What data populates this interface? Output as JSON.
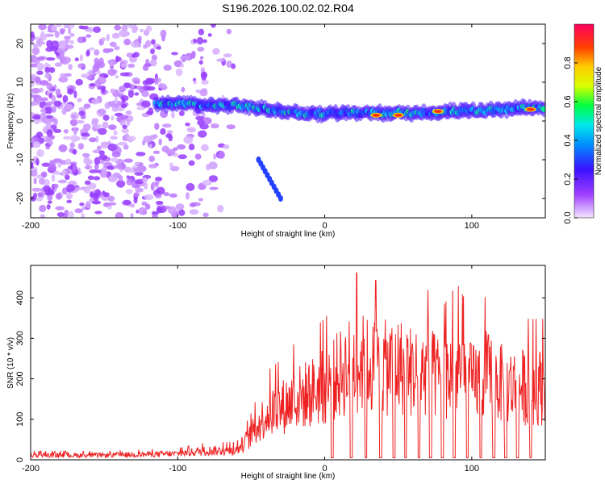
{
  "title": "S196.2026.100.02.02.R04",
  "chart_data": [
    {
      "type": "heatmap",
      "name": "spectrogram",
      "xlabel": "Height of straight line (km)",
      "ylabel": "Frequency (Hz)",
      "xlim": [
        -200,
        150
      ],
      "ylim": [
        -25,
        25
      ],
      "xticks": [
        -200,
        -100,
        0,
        100
      ],
      "yticks": [
        20,
        10,
        0,
        -10,
        -20
      ],
      "colorbar": {
        "label": "Normalized spectral amplitude",
        "range": [
          0.0,
          1.0
        ],
        "ticks": [
          0.0,
          0.2,
          0.4,
          0.6,
          0.8
        ],
        "colors": [
          "#f2e6ff",
          "#8a2be2",
          "#3a10ff",
          "#0080ff",
          "#00e0ff",
          "#00ff60",
          "#d8ff00",
          "#ffe000",
          "#ff6000",
          "#ff0060"
        ]
      },
      "features": [
        {
          "label": "noise region",
          "x_range": [
            -200,
            -60
          ],
          "y_range": [
            -25,
            25
          ],
          "level": 0.15
        },
        {
          "label": "carrier",
          "x_range": [
            -115,
            150
          ],
          "freq_hz": [
            4.5,
            4.0,
            2.0,
            2.0,
            2.5,
            3.5
          ],
          "x": [
            -115,
            -60,
            -20,
            40,
            100,
            150
          ],
          "peak_level": 0.95
        },
        {
          "label": "branch",
          "x_range": [
            -45,
            -30
          ],
          "freq_hz": [
            -10,
            -20
          ],
          "level": 0.3
        }
      ],
      "peaks": [
        {
          "x": 35,
          "y": 1.5,
          "level": 0.9
        },
        {
          "x": 50,
          "y": 1.5,
          "level": 0.9
        },
        {
          "x": 77,
          "y": 2.5,
          "level": 0.9
        },
        {
          "x": 140,
          "y": 3.0,
          "level": 0.9
        }
      ]
    },
    {
      "type": "line",
      "name": "snr",
      "xlabel": "Height of straight line (km)",
      "ylabel": "SNR (10 * v/v)",
      "xlim": [
        -200,
        150
      ],
      "ylim": [
        0,
        480
      ],
      "xticks": [
        -200,
        -100,
        0,
        100
      ],
      "yticks": [
        0,
        100,
        200,
        300,
        400
      ],
      "color": "#ee2222",
      "series": [
        {
          "name": "SNR envelope",
          "x": [
            -200,
            -150,
            -100,
            -80,
            -60,
            -50,
            -40,
            -30,
            -20,
            -10,
            0,
            10,
            20,
            30,
            40,
            50,
            60,
            70,
            80,
            90,
            100,
            110,
            120,
            130,
            140,
            150
          ],
          "values": [
            15,
            15,
            20,
            30,
            30,
            80,
            150,
            170,
            200,
            220,
            240,
            280,
            320,
            310,
            300,
            310,
            290,
            290,
            260,
            300,
            250,
            280,
            250,
            240,
            240,
            240
          ]
        }
      ],
      "dropouts_x": [
        5,
        18,
        28,
        38,
        47,
        55,
        64,
        72,
        80,
        88,
        97,
        106,
        115,
        123,
        131,
        140
      ]
    }
  ]
}
